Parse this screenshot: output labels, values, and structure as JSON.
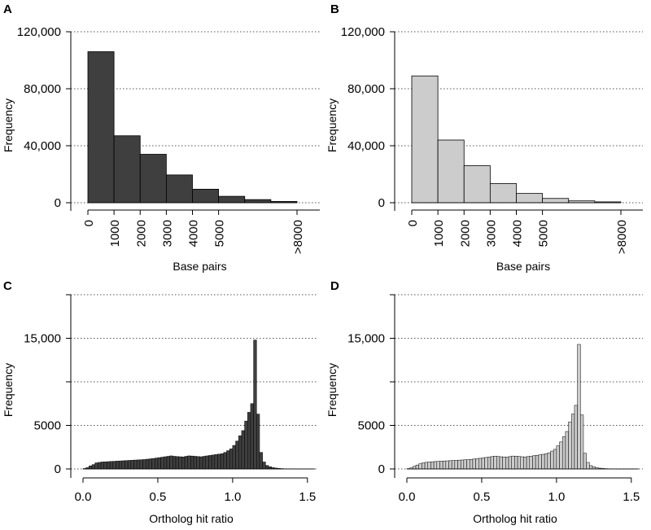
{
  "chart_data": [
    {
      "panel": "A",
      "type": "bar",
      "bar_color": "#3f3f3f",
      "bins": [
        [
          0,
          1000
        ],
        [
          1000,
          2000
        ],
        [
          2000,
          3000
        ],
        [
          3000,
          4000
        ],
        [
          4000,
          5000
        ],
        [
          5000,
          6000
        ],
        [
          6000,
          7000
        ],
        [
          7000,
          8000
        ]
      ],
      "values": [
        106000,
        47000,
        34000,
        19500,
        9500,
        4500,
        2200,
        900
      ],
      "ylim": [
        0,
        120000
      ],
      "xlim": [
        0,
        8000
      ],
      "y_ticks": [
        0,
        40000,
        80000,
        120000
      ],
      "y_tick_labels": [
        "0",
        "40,000",
        "80,000",
        "120,000"
      ],
      "x_ticks": [
        0,
        1000,
        2000,
        3000,
        4000,
        5000,
        8000
      ],
      "x_tick_labels": [
        "0",
        "1000",
        "2000",
        "3000",
        "4000",
        "5000",
        ">8000"
      ],
      "xlabel": "Base pairs",
      "ylabel": "Frequency",
      "grid": true
    },
    {
      "panel": "B",
      "type": "bar",
      "bar_color": "#cccccc",
      "bins": [
        [
          0,
          1000
        ],
        [
          1000,
          2000
        ],
        [
          2000,
          3000
        ],
        [
          3000,
          4000
        ],
        [
          4000,
          5000
        ],
        [
          5000,
          6000
        ],
        [
          6000,
          7000
        ],
        [
          7000,
          8000
        ]
      ],
      "values": [
        89000,
        44000,
        26000,
        13500,
        6500,
        3000,
        1300,
        600
      ],
      "ylim": [
        0,
        120000
      ],
      "xlim": [
        0,
        8000
      ],
      "y_ticks": [
        0,
        40000,
        80000,
        120000
      ],
      "y_tick_labels": [
        "0",
        "40,000",
        "80,000",
        "120,000"
      ],
      "x_ticks": [
        0,
        1000,
        2000,
        3000,
        4000,
        5000,
        8000
      ],
      "x_tick_labels": [
        "0",
        "1000",
        "2000",
        "3000",
        "4000",
        "5000",
        ">8000"
      ],
      "xlabel": "Base pairs",
      "ylabel": "Frequency",
      "grid": true
    },
    {
      "panel": "C",
      "type": "bar",
      "bar_color": "#3f3f3f",
      "bin_start": 0,
      "bin_width": 0.02,
      "values": [
        50,
        150,
        350,
        500,
        700,
        750,
        800,
        820,
        840,
        860,
        880,
        900,
        920,
        940,
        960,
        980,
        1000,
        1020,
        1040,
        1060,
        1080,
        1120,
        1160,
        1200,
        1250,
        1300,
        1350,
        1400,
        1450,
        1500,
        1450,
        1420,
        1400,
        1380,
        1450,
        1500,
        1480,
        1450,
        1420,
        1400,
        1450,
        1500,
        1550,
        1600,
        1650,
        1700,
        1750,
        1900,
        2100,
        2300,
        2700,
        3200,
        3800,
        4400,
        5500,
        6500,
        7500,
        14800,
        6300,
        1900,
        800,
        400,
        250,
        150,
        100,
        60,
        40,
        20,
        10,
        5,
        3,
        2,
        2,
        1,
        1,
        1,
        1
      ],
      "ylim": [
        0,
        20000
      ],
      "xlim": [
        0,
        1.55
      ],
      "y_ticks": [
        0,
        5000,
        10000,
        15000,
        20000
      ],
      "y_tick_labels": [
        "0",
        "5000",
        "",
        "15,000",
        ""
      ],
      "x_ticks": [
        0,
        0.5,
        1.0,
        1.5
      ],
      "x_tick_labels": [
        "0.0",
        "0.5",
        "1.0",
        "1.5"
      ],
      "xlabel": "Ortholog hit ratio",
      "ylabel": "Frequency",
      "grid": true
    },
    {
      "panel": "D",
      "type": "bar",
      "bar_color": "#cccccc",
      "bin_start": 0,
      "bin_width": 0.02,
      "values": [
        40,
        120,
        300,
        450,
        600,
        700,
        760,
        800,
        820,
        850,
        870,
        890,
        910,
        930,
        950,
        970,
        990,
        1010,
        1030,
        1050,
        1070,
        1100,
        1140,
        1180,
        1220,
        1270,
        1320,
        1370,
        1420,
        1470,
        1430,
        1400,
        1380,
        1360,
        1420,
        1480,
        1460,
        1430,
        1400,
        1380,
        1420,
        1470,
        1520,
        1570,
        1620,
        1680,
        1730,
        1850,
        2050,
        2250,
        2650,
        3100,
        3700,
        4300,
        5400,
        6300,
        7300,
        14300,
        6200,
        1800,
        750,
        380,
        240,
        140,
        90,
        55,
        35,
        18,
        9,
        4,
        3,
        2,
        1,
        1,
        1,
        1,
        1
      ],
      "ylim": [
        0,
        20000
      ],
      "xlim": [
        0,
        1.55
      ],
      "y_ticks": [
        0,
        5000,
        10000,
        15000,
        20000
      ],
      "y_tick_labels": [
        "0",
        "5000",
        "",
        "15,000",
        ""
      ],
      "x_ticks": [
        0,
        0.5,
        1.0,
        1.5
      ],
      "x_tick_labels": [
        "0.0",
        "0.5",
        "1.0",
        "1.5"
      ],
      "xlabel": "Ortholog hit ratio",
      "ylabel": "Frequency",
      "grid": true
    }
  ]
}
